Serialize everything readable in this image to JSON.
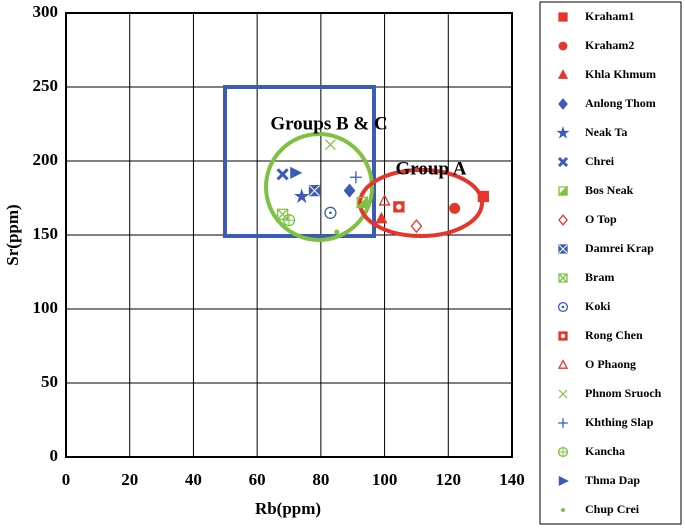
{
  "chart_data": {
    "type": "scatter",
    "x_label": "Rb(ppm)",
    "y_label": "Sr(ppm)",
    "xlim": [
      0,
      140
    ],
    "ylim": [
      0,
      300
    ],
    "xticks": [
      0,
      20,
      40,
      60,
      80,
      100,
      120,
      140
    ],
    "yticks": [
      0,
      50,
      100,
      150,
      200,
      250,
      300
    ],
    "grid": true,
    "legend": "right",
    "annotations": [
      "Groups B & C",
      "Group A"
    ],
    "series": [
      {
        "name": "Kraham1",
        "color": "#e8352a",
        "marker": "square",
        "x": [
          131
        ],
        "values": [
          176
        ]
      },
      {
        "name": "Kraham2",
        "color": "#e8352a",
        "marker": "circle",
        "x": [
          122
        ],
        "values": [
          168
        ]
      },
      {
        "name": "Khla Khmum",
        "color": "#e8352a",
        "marker": "triangle",
        "x": [
          99
        ],
        "values": [
          161
        ]
      },
      {
        "name": "Anlong Thom",
        "color": "#3b5bb5",
        "marker": "diamond",
        "x": [
          89
        ],
        "values": [
          180
        ]
      },
      {
        "name": "Neak Ta",
        "color": "#3b5bb5",
        "marker": "star",
        "x": [
          74
        ],
        "values": [
          176
        ]
      },
      {
        "name": "Chrei",
        "color": "#3b5bb5",
        "marker": "x-bold",
        "x": [
          68
        ],
        "values": [
          191
        ]
      },
      {
        "name": "Bos Neak",
        "color": "#7dc242",
        "marker": "half-square",
        "x": [
          93
        ],
        "values": [
          172
        ]
      },
      {
        "name": "O Top",
        "color": "#e8352a",
        "marker": "diamond-open",
        "x": [
          110
        ],
        "values": [
          156
        ]
      },
      {
        "name": "Damrei Krap",
        "color": "#3b5bb5",
        "marker": "square-x-filled",
        "x": [
          78
        ],
        "values": [
          180
        ]
      },
      {
        "name": "Bram",
        "color": "#7dc242",
        "marker": "square-x",
        "x": [
          68
        ],
        "values": [
          164
        ]
      },
      {
        "name": "Koki",
        "color": "#3b5bb5",
        "marker": "circle-dot",
        "x": [
          83
        ],
        "values": [
          165
        ]
      },
      {
        "name": "Rong Chen",
        "color": "#e8352a",
        "marker": "square-circle",
        "x": [
          104.5
        ],
        "values": [
          169
        ]
      },
      {
        "name": "O Phaong",
        "color": "#e8352a",
        "marker": "triangle-open",
        "x": [
          100
        ],
        "values": [
          173
        ]
      },
      {
        "name": "Phnom Sruoch",
        "color": "#7dc242",
        "marker": "x-thin",
        "x": [
          83
        ],
        "values": [
          211
        ]
      },
      {
        "name": "Khthing Slap",
        "color": "#3b5bb5",
        "marker": "plus",
        "x": [
          91
        ],
        "values": [
          189
        ]
      },
      {
        "name": "Kancha",
        "color": "#7dc242",
        "marker": "circle-plus",
        "x": [
          70
        ],
        "values": [
          160
        ]
      },
      {
        "name": "Thma Dap",
        "color": "#3b5bb5",
        "marker": "triangle-right",
        "x": [
          72
        ],
        "values": [
          192
        ]
      },
      {
        "name": "Chup Crei",
        "color": "#7dc242",
        "marker": "dot",
        "x": [
          85
        ],
        "values": [
          152
        ]
      }
    ]
  }
}
